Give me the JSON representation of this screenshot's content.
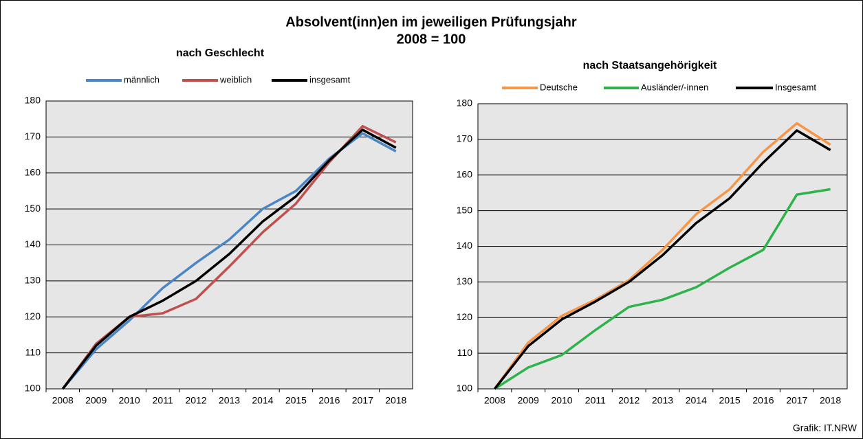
{
  "title": "Absolvent(inn)en im jeweiligen Prüfungsjahr",
  "subtitle": "2008 = 100",
  "source": "Grafik: IT.NRW",
  "chart_data": [
    {
      "type": "line",
      "title": "nach Geschlecht",
      "categories": [
        "2008",
        "2009",
        "2010",
        "2011",
        "2012",
        "2013",
        "2014",
        "2015",
        "2016",
        "2017",
        "2018"
      ],
      "series": [
        {
          "name": "männlich",
          "color": "#4a86c5",
          "values": [
            100,
            111,
            119,
            128,
            135,
            141.5,
            150,
            155,
            164,
            171,
            166
          ]
        },
        {
          "name": "weiblich",
          "color": "#c0504d",
          "values": [
            100,
            112.5,
            120,
            121,
            125,
            134,
            143.5,
            151.5,
            163,
            173,
            168.5
          ]
        },
        {
          "name": "insgesamt",
          "color": "#000000",
          "values": [
            100,
            112,
            120,
            124.5,
            130,
            137.5,
            146.5,
            153.5,
            163.5,
            172,
            167
          ]
        }
      ],
      "ylim": [
        100,
        180
      ],
      "yticks": [
        100,
        110,
        120,
        130,
        140,
        150,
        160,
        170,
        180
      ],
      "grid": true,
      "legend": "top"
    },
    {
      "type": "line",
      "title": "nach Staatsangehörigkeit",
      "categories": [
        "2008",
        "2009",
        "2010",
        "2011",
        "2012",
        "2013",
        "2014",
        "2015",
        "2016",
        "2017",
        "2018"
      ],
      "series": [
        {
          "name": "Deutsche",
          "color": "#f79646",
          "values": [
            100,
            113,
            120.5,
            125,
            130.5,
            139,
            149,
            156,
            166.5,
            174.5,
            168.5
          ]
        },
        {
          "name": "Ausländer/-innen",
          "color": "#2db34a",
          "values": [
            100,
            106,
            109.5,
            116.5,
            123,
            125,
            128.5,
            134,
            139,
            154.5,
            156
          ]
        },
        {
          "name": "Insgesamt",
          "color": "#000000",
          "values": [
            100,
            112,
            119.5,
            124.5,
            130,
            137.5,
            146.5,
            153.5,
            163.5,
            172.5,
            167
          ]
        }
      ],
      "ylim": [
        100,
        180
      ],
      "yticks": [
        100,
        110,
        120,
        130,
        140,
        150,
        160,
        170,
        180
      ],
      "grid": true,
      "legend": "top"
    }
  ]
}
